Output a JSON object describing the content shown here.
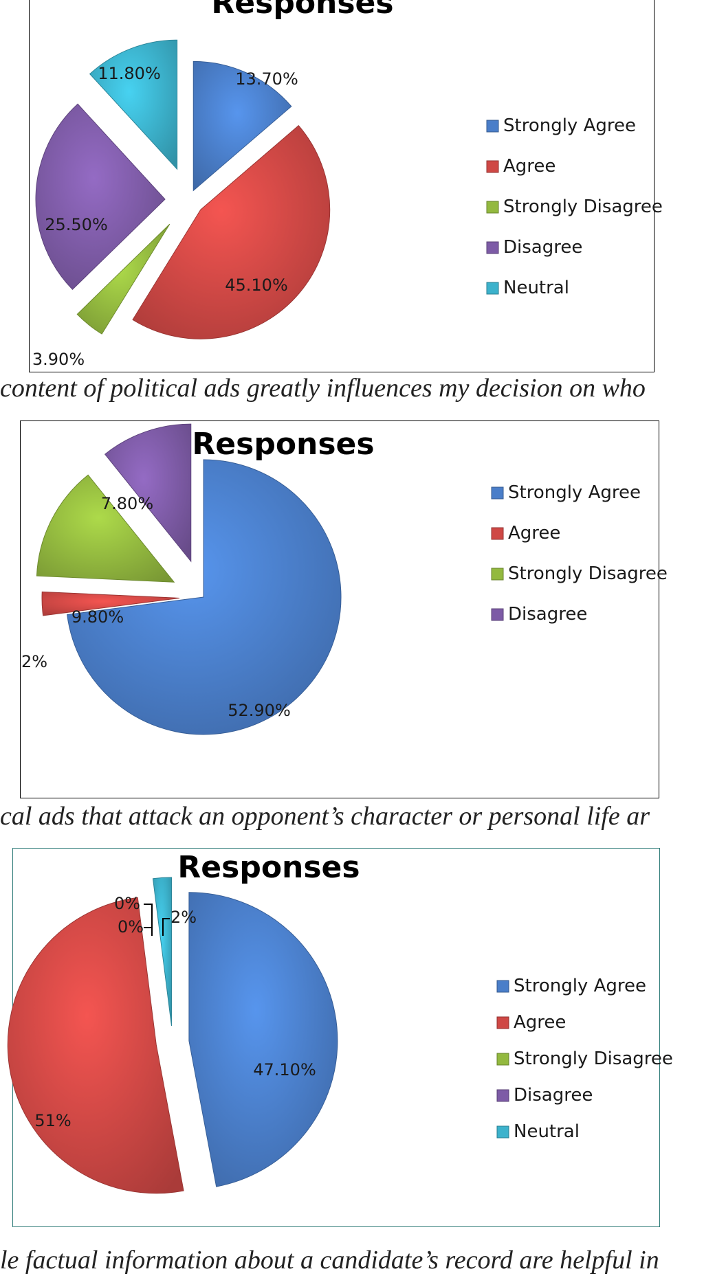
{
  "captions": [
    "content of political ads greatly influences my decision on who",
    "cal ads that attack an opponent’s character or personal life ar",
    "le factual information about a candidate’s record are helpful in"
  ],
  "chart_data": [
    {
      "type": "pie",
      "title": "Responses",
      "legend": "right",
      "border_color": "#000000",
      "slices": [
        {
          "name": "Strongly Agree",
          "value": 13.7,
          "label": "13.70%",
          "color": "#4a7ec9"
        },
        {
          "name": "Agree",
          "value": 45.1,
          "label": "45.10%",
          "color": "#cf4845"
        },
        {
          "name": "Strongly Disagree",
          "value": 3.9,
          "label": "3.90%",
          "color": "#93b93f"
        },
        {
          "name": "Disagree",
          "value": 25.5,
          "label": "25.50%",
          "color": "#7d5ba6"
        },
        {
          "name": "Neutral",
          "value": 11.8,
          "label": "11.80%",
          "color": "#3cb2cc"
        }
      ],
      "legend_entries": [
        "Strongly Agree",
        "Agree",
        "Strongly Disagree",
        "Disagree",
        "Neutral"
      ]
    },
    {
      "type": "pie",
      "title": "Responses",
      "legend": "right",
      "border_color": "#000000",
      "slices": [
        {
          "name": "Strongly Agree",
          "value": 52.9,
          "label": "52.90%",
          "color": "#4a7ec9"
        },
        {
          "name": "Agree",
          "value": 2,
          "label": "2%",
          "color": "#cf4845"
        },
        {
          "name": "Strongly Disagree",
          "value": 9.8,
          "label": "9.80%",
          "color": "#93b93f"
        },
        {
          "name": "Disagree",
          "value": 7.8,
          "label": "7.80%",
          "color": "#7d5ba6"
        }
      ],
      "legend_entries": [
        "Strongly Agree",
        "Agree",
        "Strongly Disagree",
        "Disagree"
      ]
    },
    {
      "type": "pie",
      "title": "Responses",
      "legend": "right",
      "border_color": "#2e7b78",
      "slices": [
        {
          "name": "Strongly Agree",
          "value": 47.1,
          "label": "47.10%",
          "color": "#4a7ec9"
        },
        {
          "name": "Agree",
          "value": 51,
          "label": "51%",
          "color": "#cf4845"
        },
        {
          "name": "Strongly Disagree",
          "value": 0,
          "label": "0%",
          "color": "#93b93f"
        },
        {
          "name": "Disagree",
          "value": 0,
          "label": "0%",
          "color": "#7d5ba6"
        },
        {
          "name": "Neutral",
          "value": 2,
          "label": "2%",
          "color": "#3cb2cc"
        }
      ],
      "legend_entries": [
        "Strongly Agree",
        "Agree",
        "Strongly Disagree",
        "Disagree",
        "Neutral"
      ]
    }
  ]
}
